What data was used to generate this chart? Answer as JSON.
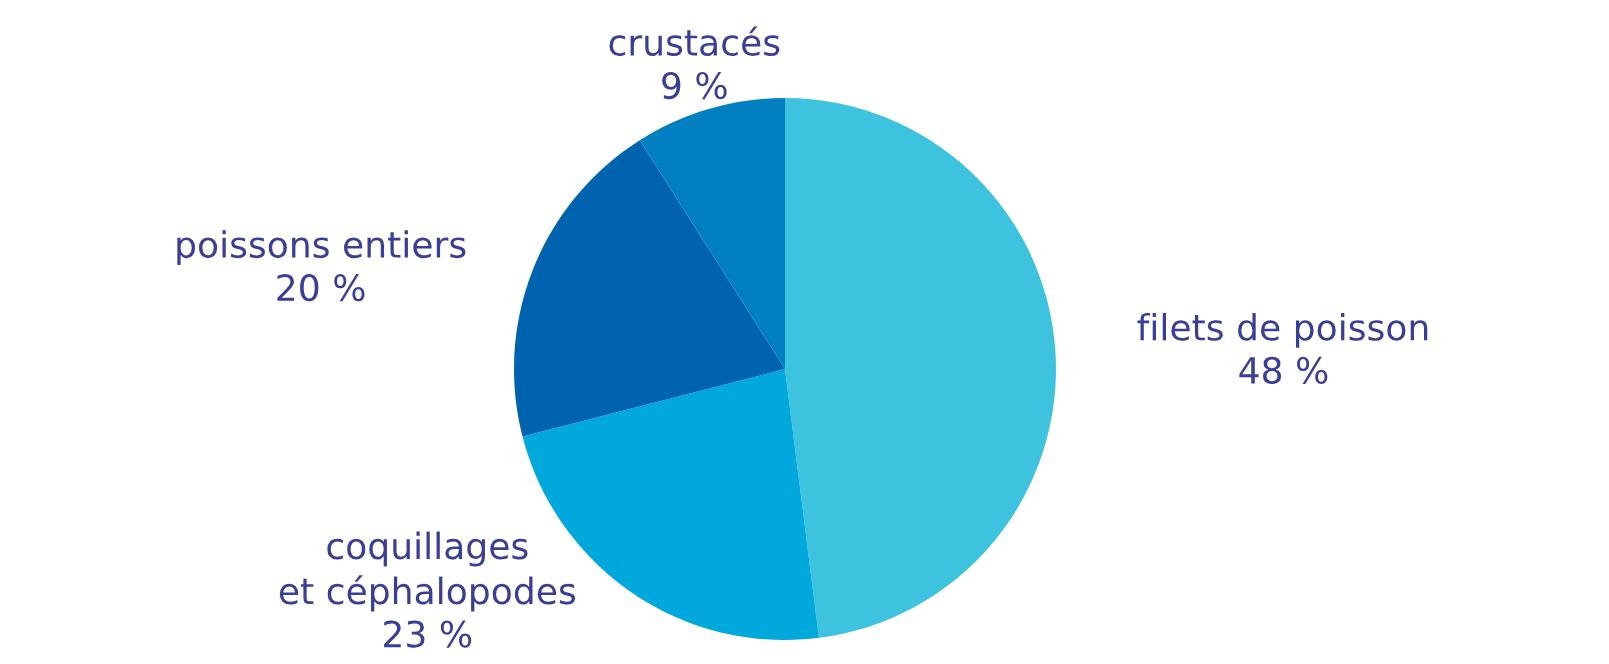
{
  "chart_data": {
    "type": "pie",
    "categories": [
      "filets de poisson",
      "coquillages\net céphalopodes",
      "poissons entiers",
      "crustacés"
    ],
    "values": [
      48,
      23,
      20,
      9
    ],
    "value_labels": [
      "48 %",
      "23 %",
      "20 %",
      "9 %"
    ],
    "colors": [
      "#3dc3de",
      "#00a8dc",
      "#0063b0",
      "#0080c0"
    ],
    "legend": false
  }
}
